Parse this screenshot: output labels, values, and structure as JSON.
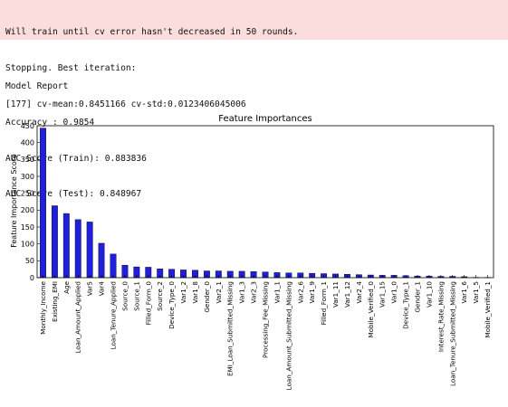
{
  "log": {
    "stderr_lines": [
      "Will train until cv error hasn't decreased in 50 rounds.",
      "Stopping. Best iteration:",
      "[177] cv-mean:0.8451166 cv-std:0.0123406045006"
    ],
    "stdout_lines": [
      "Model Report",
      "Accuracy : 0.9854",
      "AUC Score (Train): 0.883836",
      "AUC Score (Test): 0.848967"
    ]
  },
  "colors": {
    "bar": "#1f1fdd",
    "stderr_bg": "#fbdddd"
  },
  "chart_data": {
    "type": "bar",
    "title": "Feature Importances",
    "ylabel": "Feature Importance Score",
    "xlabel": "",
    "ylim": [
      0,
      450
    ],
    "yticks": [
      0,
      50,
      100,
      150,
      200,
      250,
      300,
      350,
      400,
      450
    ],
    "grid": false,
    "categories": [
      "Monthly_Income",
      "Existing_EMI",
      "Age",
      "Loan_Amount_Applied",
      "Var5",
      "Var4",
      "Loan_Tenure_Applied",
      "Source_0",
      "Source_1",
      "Filled_Form_0",
      "Source_2",
      "Device_Type_0",
      "Var1_2",
      "Var1_8",
      "Gender_0",
      "Var2_1",
      "EMI_Loan_Submitted_Missing",
      "Var1_3",
      "Var2_3",
      "Processing_Fee_Missing",
      "Var1_1",
      "Loan_Amount_Submitted_Missing",
      "Var2_6",
      "Var1_9",
      "Filled_Form_1",
      "Var1_11",
      "Var1_12",
      "Var2_4",
      "Mobile_Verified_0",
      "Var1_15",
      "Var1_0",
      "Device_Type_1",
      "Gender_1",
      "Var1_10",
      "Interest_Rate_Missing",
      "Loan_Tenure_Submitted_Missing",
      "Var1_6",
      "Var1_5",
      "Mobile_Verified_1"
    ],
    "values": [
      443,
      213,
      190,
      172,
      165,
      102,
      70,
      37,
      32,
      31,
      26,
      25,
      23,
      22,
      20,
      20,
      19,
      19,
      18,
      17,
      15,
      14,
      14,
      13,
      12,
      11,
      10,
      9,
      8,
      7,
      7,
      6,
      5,
      5,
      4,
      4,
      3,
      1,
      0.5
    ]
  }
}
